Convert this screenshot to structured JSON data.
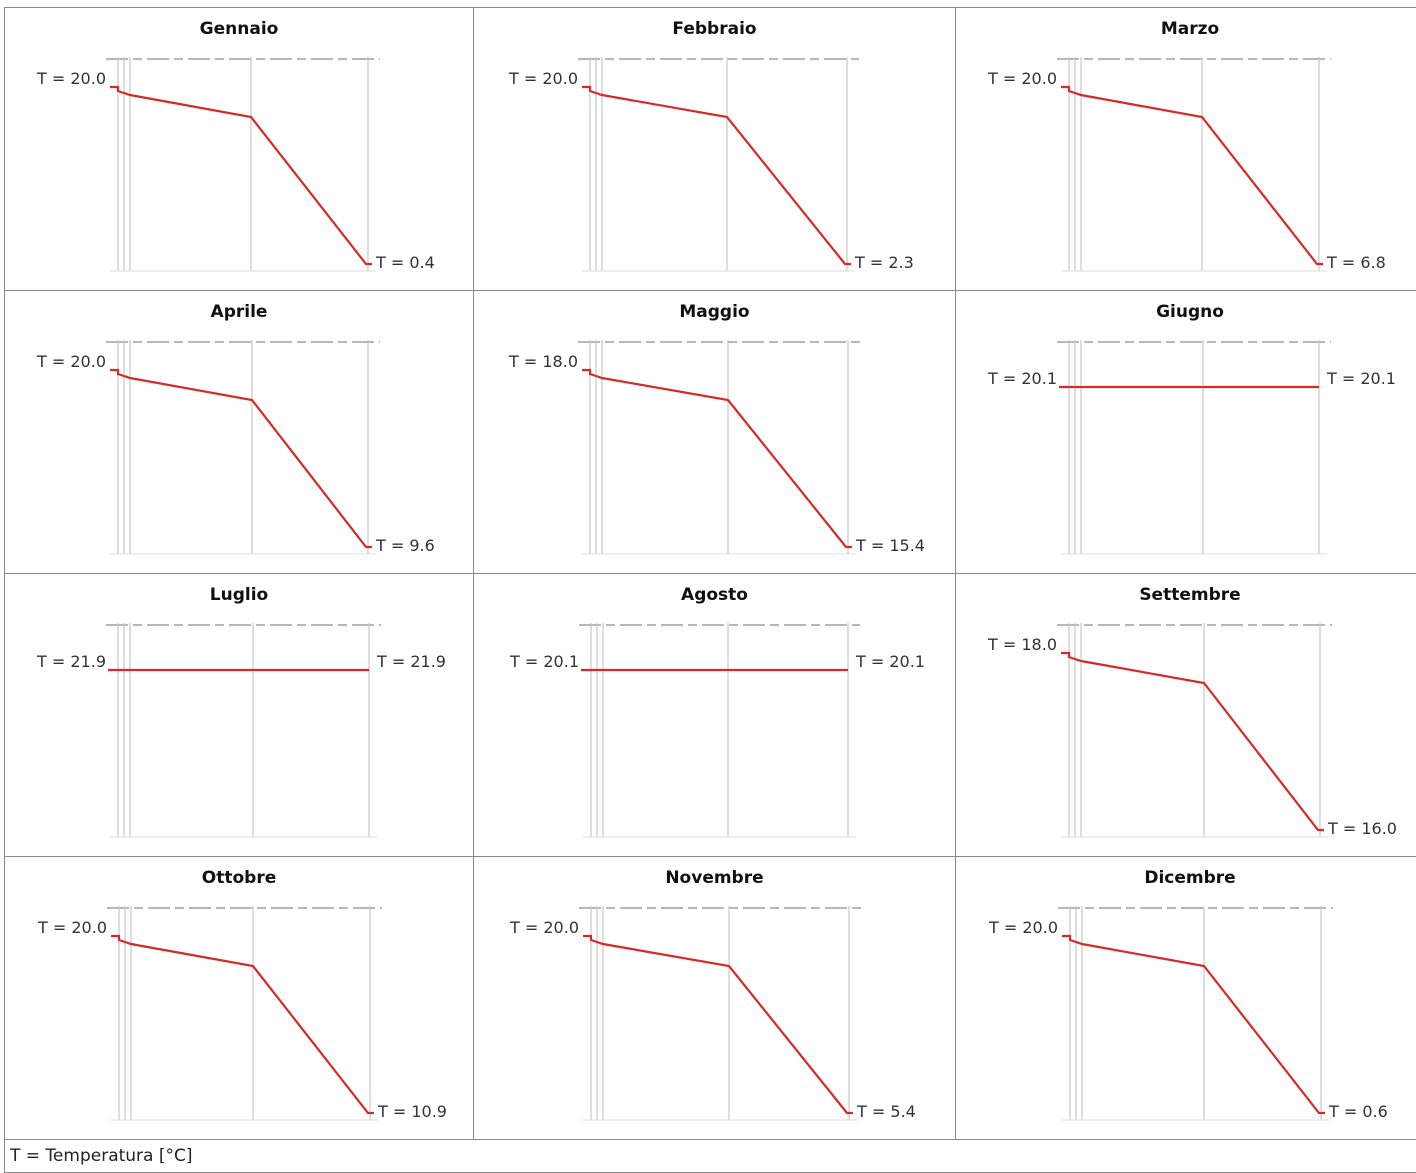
{
  "legend_note": "T = Temperatura [°C]",
  "colors": {
    "profile": "#d42a2a",
    "guide": "#c8c8c8",
    "dash": "#8c8c8c",
    "text": "#333333"
  },
  "chart_data": [
    {
      "type": "line",
      "title": "Gennaio",
      "start_label": "T = 20.0",
      "end_label": "T = 0.4",
      "profile": "gradient"
    },
    {
      "type": "line",
      "title": "Febbraio",
      "start_label": "T = 20.0",
      "end_label": "T = 2.3",
      "profile": "gradient"
    },
    {
      "type": "line",
      "title": "Marzo",
      "start_label": "T = 20.0",
      "end_label": "T = 6.8",
      "profile": "gradient"
    },
    {
      "type": "line",
      "title": "Aprile",
      "start_label": "T = 20.0",
      "end_label": "T = 9.6",
      "profile": "gradient"
    },
    {
      "type": "line",
      "title": "Maggio",
      "start_label": "T = 18.0",
      "end_label": "T = 15.4",
      "profile": "gradient"
    },
    {
      "type": "line",
      "title": "Giugno",
      "start_label": "T = 20.1",
      "end_label": "T = 20.1",
      "profile": "flat"
    },
    {
      "type": "line",
      "title": "Luglio",
      "start_label": "T = 21.9",
      "end_label": "T = 21.9",
      "profile": "flat"
    },
    {
      "type": "line",
      "title": "Agosto",
      "start_label": "T = 20.1",
      "end_label": "T = 20.1",
      "profile": "flat"
    },
    {
      "type": "line",
      "title": "Settembre",
      "start_label": "T = 18.0",
      "end_label": "T = 16.0",
      "profile": "gradient"
    },
    {
      "type": "line",
      "title": "Ottobre",
      "start_label": "T = 20.0",
      "end_label": "T = 10.9",
      "profile": "gradient"
    },
    {
      "type": "line",
      "title": "Novembre",
      "start_label": "T = 20.0",
      "end_label": "T = 5.4",
      "profile": "gradient"
    },
    {
      "type": "line",
      "title": "Dicembre",
      "start_label": "T = 20.0",
      "end_label": "T = 0.6",
      "profile": "gradient"
    }
  ]
}
